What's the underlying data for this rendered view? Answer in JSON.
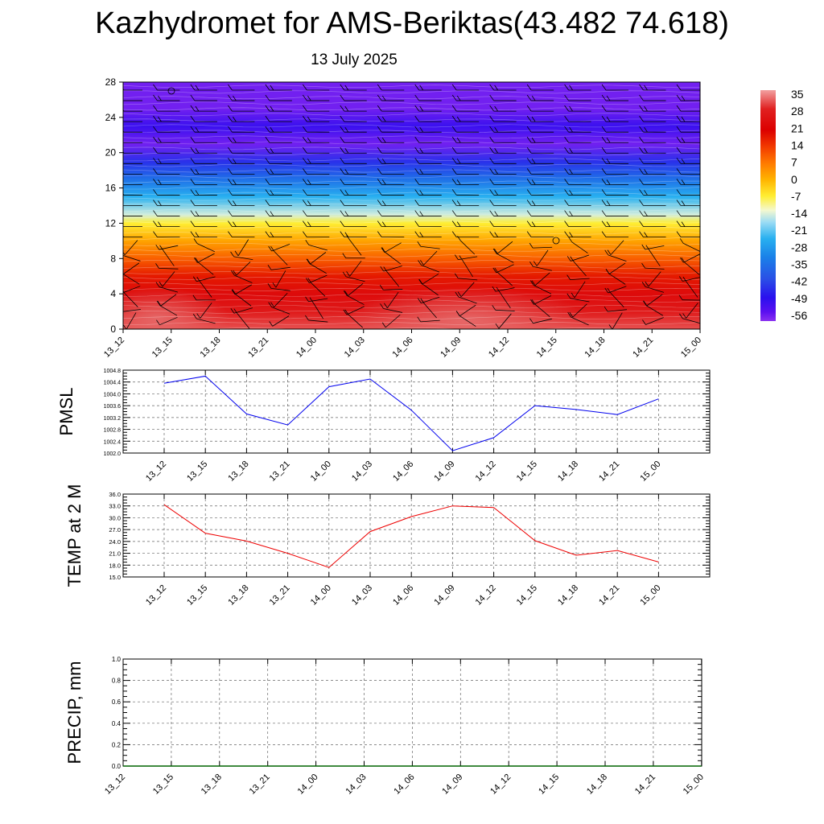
{
  "header": {
    "title": "Kazhydromet for AMS-Beriktas(43.482 74.618)",
    "date": "13 July 2025"
  },
  "time_labels": [
    "13_12",
    "13_15",
    "13_18",
    "13_21",
    "14_00",
    "14_03",
    "14_06",
    "14_09",
    "14_12",
    "14_15",
    "14_18",
    "14_21",
    "15_00"
  ],
  "chart_data": [
    {
      "type": "heatmap",
      "name": "temperature-cross-section",
      "x": [
        "13_12",
        "13_15",
        "13_18",
        "13_21",
        "14_00",
        "14_03",
        "14_06",
        "14_09",
        "14_12",
        "14_15",
        "14_18",
        "14_21",
        "15_00"
      ],
      "y_ticks": [
        0,
        4,
        8,
        12,
        16,
        20,
        24,
        28
      ],
      "ylim": [
        0,
        28
      ],
      "vertical_profile": [
        {
          "level": 0,
          "value": 33
        },
        {
          "level": 2,
          "value": 28
        },
        {
          "level": 4,
          "value": 24
        },
        {
          "level": 6,
          "value": 18
        },
        {
          "level": 8,
          "value": 10
        },
        {
          "level": 10,
          "value": 2
        },
        {
          "level": 12,
          "value": -7
        },
        {
          "level": 13,
          "value": -15
        },
        {
          "level": 15,
          "value": -25
        },
        {
          "level": 17,
          "value": -36
        },
        {
          "level": 19,
          "value": -46
        },
        {
          "level": 21,
          "value": -58
        },
        {
          "level": 23,
          "value": -52
        },
        {
          "level": 25,
          "value": -58
        },
        {
          "level": 28,
          "value": -58
        }
      ],
      "colorbar_labels": [
        "35",
        "28",
        "21",
        "14",
        "7",
        "0",
        "-7",
        "-14",
        "-21",
        "-28",
        "-35",
        "-42",
        "-49",
        "-56"
      ],
      "colorbar_range": [
        -60,
        38
      ],
      "color_stops": [
        {
          "value": 38,
          "color": "#f2a0a0"
        },
        {
          "value": 30,
          "color": "#e02020"
        },
        {
          "value": 21,
          "color": "#dc0000"
        },
        {
          "value": 14,
          "color": "#f23a00"
        },
        {
          "value": 7,
          "color": "#ff7a00"
        },
        {
          "value": 0,
          "color": "#ffb400"
        },
        {
          "value": -7,
          "color": "#ffee33"
        },
        {
          "value": -13,
          "color": "#f4f8d0"
        },
        {
          "value": -18,
          "color": "#9cdcf4"
        },
        {
          "value": -25,
          "color": "#28b0f0"
        },
        {
          "value": -33,
          "color": "#1a80e8"
        },
        {
          "value": -42,
          "color": "#2a50e6"
        },
        {
          "value": -50,
          "color": "#2a10ee"
        },
        {
          "value": -56,
          "color": "#5a10f0"
        },
        {
          "value": -60,
          "color": "#8a30f0"
        }
      ]
    },
    {
      "type": "line",
      "name": "pmsl",
      "ylabel": "PMSL",
      "x": [
        "13_12",
        "13_15",
        "13_18",
        "13_21",
        "14_00",
        "14_03",
        "14_06",
        "14_09",
        "14_12",
        "14_15",
        "14_18",
        "14_21",
        "15_00"
      ],
      "values": [
        1004.36,
        1004.6,
        1003.32,
        1002.95,
        1004.24,
        1004.5,
        1003.45,
        1002.08,
        1002.52,
        1003.6,
        1003.47,
        1003.3,
        1003.83
      ],
      "ylim": [
        1002.0,
        1004.8
      ],
      "y_ticks": [
        "1002.0",
        "1002.4",
        "1002.8",
        "1003.2",
        "1003.6",
        "1004.0",
        "1004.4",
        "1004.8"
      ],
      "color": "#0000ee",
      "grid": true
    },
    {
      "type": "line",
      "name": "temp-2m",
      "ylabel": "TEMP at 2 M",
      "x": [
        "13_12",
        "13_15",
        "13_18",
        "13_21",
        "14_00",
        "14_03",
        "14_06",
        "14_09",
        "14_12",
        "14_15",
        "14_18",
        "14_21",
        "15_00"
      ],
      "values": [
        33.3,
        26.1,
        24.1,
        21.0,
        17.4,
        26.5,
        30.3,
        33.0,
        32.6,
        24.2,
        20.5,
        21.7,
        18.8
      ],
      "ylim": [
        15.0,
        36.0
      ],
      "y_ticks": [
        "15.0",
        "18.0",
        "21.0",
        "24.0",
        "27.0",
        "30.0",
        "33.0",
        "36.0"
      ],
      "color": "#ee0000",
      "grid": true
    },
    {
      "type": "line",
      "name": "precip",
      "ylabel": "PRECIP, mm",
      "x": [
        "13_12",
        "13_15",
        "13_18",
        "13_21",
        "14_00",
        "14_03",
        "14_06",
        "14_09",
        "14_12",
        "14_15",
        "14_18",
        "14_21",
        "15_00"
      ],
      "values": [
        0,
        0,
        0,
        0,
        0,
        0,
        0,
        0,
        0,
        0,
        0,
        0,
        0
      ],
      "ylim": [
        0.0,
        1.0
      ],
      "y_ticks": [
        "0.0",
        "0.2",
        "0.4",
        "0.6",
        "0.8",
        "1.0"
      ],
      "color": "#006400",
      "grid": true
    }
  ]
}
